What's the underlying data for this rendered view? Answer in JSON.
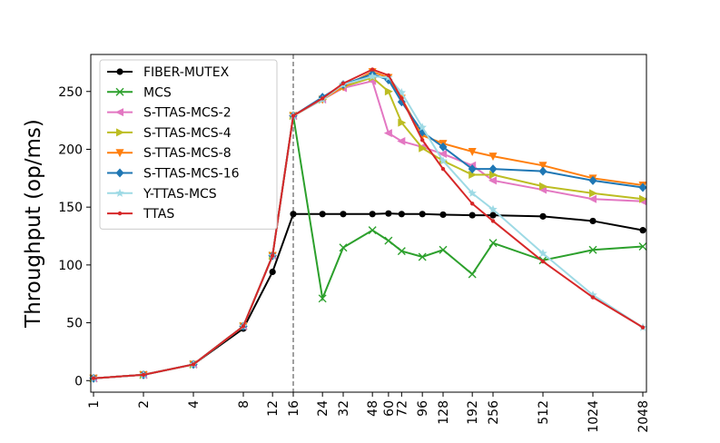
{
  "chart_data": {
    "type": "line",
    "title": "",
    "xlabel": "",
    "ylabel": "Throughput (op/ms)",
    "x": [
      1,
      2,
      4,
      8,
      12,
      16,
      24,
      32,
      48,
      60,
      72,
      96,
      128,
      192,
      256,
      512,
      1024,
      2048
    ],
    "x_scale": "log2",
    "x_tick_labels": [
      "1",
      "2",
      "4",
      "8",
      "12",
      "16",
      "24",
      "32",
      "48",
      "60",
      "72",
      "96",
      "128",
      "192",
      "256",
      "512",
      "1024",
      "2048"
    ],
    "y_ticks": [
      0,
      50,
      100,
      150,
      200,
      250
    ],
    "ylim": [
      -10,
      282
    ],
    "reference_line": {
      "x": 16,
      "style": "dashed"
    },
    "legend_position": "top-left",
    "series": [
      {
        "name": "FIBER-MUTEX",
        "color": "#000000",
        "marker": "circle",
        "values": [
          2,
          5,
          14,
          45,
          94,
          144,
          144,
          144,
          144,
          144.5,
          144,
          144,
          143.5,
          143,
          143,
          142,
          138,
          130
        ]
      },
      {
        "name": "MCS",
        "color": "#2ca02c",
        "marker": "x",
        "values": [
          2,
          5,
          14,
          47,
          108,
          229,
          71,
          115,
          130,
          121,
          112,
          107,
          113,
          92,
          119,
          104,
          113,
          116
        ]
      },
      {
        "name": "S-TTAS-MCS-2",
        "color": "#e377c2",
        "marker": "triangle-left",
        "values": [
          2,
          5,
          14,
          47,
          108,
          229,
          243,
          253,
          259,
          214,
          207,
          202,
          196,
          186,
          173,
          165,
          157,
          155
        ]
      },
      {
        "name": "S-TTAS-MCS-4",
        "color": "#bcbd22",
        "marker": "triangle-right",
        "values": [
          2,
          5,
          14,
          47,
          108,
          229,
          243,
          254,
          262,
          250,
          223,
          201,
          190,
          178,
          178,
          168,
          162,
          157
        ]
      },
      {
        "name": "S-TTAS-MCS-8",
        "color": "#ff7f0e",
        "marker": "triangle-down",
        "values": [
          2,
          5,
          14,
          47,
          108,
          229,
          243,
          254,
          267,
          262,
          244,
          212,
          205,
          198,
          194,
          186,
          175,
          169
        ]
      },
      {
        "name": "S-TTAS-MCS-16",
        "color": "#1f77b4",
        "marker": "diamond",
        "values": [
          2,
          5,
          14,
          47,
          108,
          229,
          245,
          256,
          265,
          260,
          241,
          215,
          202,
          183,
          183,
          181,
          173,
          167
        ]
      },
      {
        "name": "Y-TTAS-MCS",
        "color": "#9edae5",
        "marker": "star",
        "values": [
          2,
          5,
          14,
          47,
          108,
          229,
          243,
          256,
          263,
          262,
          249,
          219,
          190,
          162,
          148,
          110,
          74,
          46
        ]
      },
      {
        "name": "TTAS",
        "color": "#d62728",
        "marker": "point",
        "values": [
          2,
          5,
          14,
          47,
          108,
          229,
          244,
          257,
          269,
          264,
          244,
          208,
          183,
          153,
          138,
          103,
          72,
          46
        ]
      }
    ]
  }
}
